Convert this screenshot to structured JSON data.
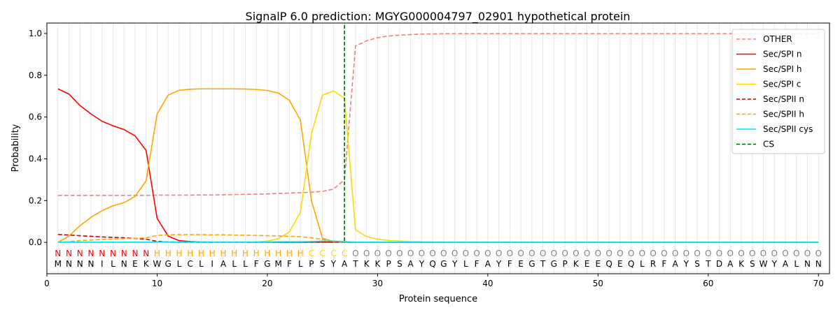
{
  "chart_data": {
    "type": "line",
    "title": "SignalP 6.0 prediction: MGYG000004797_02901 hypothetical protein",
    "xlabel": "Protein sequence",
    "ylabel": "Probability",
    "xlim": [
      0,
      71
    ],
    "ylim": [
      -0.15,
      1.05
    ],
    "x_ticks": [
      0,
      10,
      20,
      30,
      40,
      50,
      60,
      70
    ],
    "y_ticks": [
      0.0,
      0.2,
      0.4,
      0.6,
      0.8,
      1.0
    ],
    "x_tick_labels": [
      "0",
      "10",
      "20",
      "30",
      "40",
      "50",
      "60",
      "70"
    ],
    "y_tick_labels": [
      "0.0",
      "0.2",
      "0.4",
      "0.6",
      "0.8",
      "1.0"
    ],
    "grid": "vertical lines at each residue position",
    "legend_position": "top-right",
    "sequence": [
      "M",
      "N",
      "N",
      "N",
      "I",
      "L",
      "N",
      "E",
      "K",
      "W",
      "G",
      "L",
      "C",
      "L",
      "I",
      "A",
      "L",
      "L",
      "F",
      "G",
      "M",
      "F",
      "L",
      "P",
      "S",
      "Y",
      "A",
      "T",
      "K",
      "K",
      "P",
      "S",
      "A",
      "Y",
      "Q",
      "G",
      "Y",
      "L",
      "F",
      "A",
      "Y",
      "F",
      "E",
      "G",
      "T",
      "G",
      "P",
      "K",
      "E",
      "E",
      "Q",
      "E",
      "Q",
      "L",
      "R",
      "F",
      "A",
      "Y",
      "S",
      "T",
      "D",
      "A",
      "K",
      "S",
      "W",
      "Y",
      "A",
      "L",
      "N",
      "N"
    ],
    "region_labels": [
      "N",
      "N",
      "N",
      "N",
      "N",
      "N",
      "N",
      "N",
      "N",
      "H",
      "H",
      "H",
      "H",
      "H",
      "H",
      "H",
      "H",
      "H",
      "H",
      "H",
      "H",
      "H",
      "H",
      "C",
      "C",
      "C",
      "C",
      "O",
      "O",
      "O",
      "O",
      "O",
      "O",
      "O",
      "O",
      "O",
      "O",
      "O",
      "O",
      "O",
      "O",
      "O",
      "O",
      "O",
      "O",
      "O",
      "O",
      "O",
      "O",
      "O",
      "O",
      "O",
      "O",
      "O",
      "O",
      "O",
      "O",
      "O",
      "O",
      "O",
      "O",
      "O",
      "O",
      "O",
      "O",
      "O",
      "O",
      "O",
      "O",
      "O"
    ],
    "region_colors": {
      "N": "#ff0000",
      "H": "#ffa500",
      "C": "#ffd700",
      "O": "#808080"
    },
    "cleavage_site": 27,
    "series": [
      {
        "name": "OTHER",
        "color": "#f08080",
        "dash": "dashed",
        "values": [
          0.225,
          0.225,
          0.225,
          0.225,
          0.225,
          0.225,
          0.225,
          0.225,
          0.225,
          0.226,
          0.226,
          0.226,
          0.226,
          0.227,
          0.227,
          0.228,
          0.229,
          0.23,
          0.231,
          0.232,
          0.234,
          0.236,
          0.238,
          0.24,
          0.244,
          0.255,
          0.3,
          0.94,
          0.965,
          0.98,
          0.988,
          0.992,
          0.995,
          0.997,
          0.998,
          0.999,
          0.999,
          0.999,
          0.999,
          0.999,
          0.999,
          0.999,
          0.999,
          0.999,
          0.999,
          0.999,
          0.999,
          0.999,
          0.999,
          0.999,
          0.999,
          0.999,
          0.999,
          0.999,
          0.999,
          0.999,
          0.999,
          0.999,
          0.999,
          0.999,
          0.999,
          0.999,
          0.999,
          0.999,
          0.999,
          0.999,
          0.999,
          0.999,
          0.999,
          0.999
        ]
      },
      {
        "name": "Sec/SPI n",
        "color": "#ff0000",
        "dash": "solid",
        "values": [
          0.735,
          0.71,
          0.655,
          0.615,
          0.58,
          0.558,
          0.54,
          0.51,
          0.44,
          0.115,
          0.03,
          0.008,
          0.004,
          0.002,
          0.001,
          0.001,
          0.001,
          0.001,
          0.001,
          0.001,
          0.001,
          0.001,
          0.001,
          0.001,
          0.001,
          0.001,
          0.001,
          0,
          0,
          0,
          0,
          0,
          0,
          0,
          0,
          0,
          0,
          0,
          0,
          0,
          0,
          0,
          0,
          0,
          0,
          0,
          0,
          0,
          0,
          0,
          0,
          0,
          0,
          0,
          0,
          0,
          0,
          0,
          0,
          0,
          0,
          0,
          0,
          0,
          0,
          0,
          0,
          0,
          0,
          0
        ]
      },
      {
        "name": "Sec/SPI h",
        "color": "#ffa500",
        "dash": "solid",
        "values": [
          0.0,
          0.03,
          0.08,
          0.12,
          0.152,
          0.175,
          0.19,
          0.22,
          0.295,
          0.615,
          0.705,
          0.728,
          0.733,
          0.735,
          0.735,
          0.735,
          0.735,
          0.734,
          0.732,
          0.727,
          0.715,
          0.68,
          0.585,
          0.2,
          0.02,
          0.004,
          0.001,
          0,
          0,
          0,
          0,
          0,
          0,
          0,
          0,
          0,
          0,
          0,
          0,
          0,
          0,
          0,
          0,
          0,
          0,
          0,
          0,
          0,
          0,
          0,
          0,
          0,
          0,
          0,
          0,
          0,
          0,
          0,
          0,
          0,
          0,
          0,
          0,
          0,
          0,
          0,
          0,
          0,
          0,
          0
        ]
      },
      {
        "name": "Sec/SPI c",
        "color": "#ffd700",
        "dash": "solid",
        "values": [
          0,
          0,
          0,
          0,
          0,
          0,
          0,
          0,
          0,
          0,
          0,
          0,
          0,
          0,
          0,
          0,
          0,
          0,
          0.002,
          0.006,
          0.018,
          0.05,
          0.145,
          0.52,
          0.705,
          0.725,
          0.69,
          0.06,
          0.028,
          0.015,
          0.009,
          0.006,
          0.004,
          0.003,
          0.002,
          0.001,
          0.001,
          0.001,
          0.001,
          0.001,
          0.001,
          0.001,
          0.001,
          0.001,
          0.001,
          0.001,
          0.001,
          0.001,
          0.001,
          0.001,
          0.001,
          0.001,
          0.001,
          0.001,
          0.001,
          0.001,
          0.001,
          0.001,
          0.001,
          0.001,
          0.001,
          0.001,
          0.001,
          0.001,
          0.001,
          0.001,
          0.001,
          0.001,
          0.001,
          0.001
        ]
      },
      {
        "name": "Sec/SPII n",
        "color": "#cc0000",
        "dash": "dashed",
        "values": [
          0.038,
          0.035,
          0.032,
          0.029,
          0.026,
          0.024,
          0.022,
          0.019,
          0.015,
          0.005,
          0.002,
          0.001,
          0.001,
          0.001,
          0.001,
          0.001,
          0.001,
          0.001,
          0.001,
          0.001,
          0.001,
          0.001,
          0.001,
          0.001,
          0.001,
          0.001,
          0.001,
          0,
          0,
          0,
          0,
          0,
          0,
          0,
          0,
          0,
          0,
          0,
          0,
          0,
          0,
          0,
          0,
          0,
          0,
          0,
          0,
          0,
          0,
          0,
          0,
          0,
          0,
          0,
          0,
          0,
          0,
          0,
          0,
          0,
          0,
          0,
          0,
          0,
          0,
          0,
          0,
          0,
          0,
          0
        ]
      },
      {
        "name": "Sec/SPII h",
        "color": "#ffa500",
        "dash": "dashed",
        "values": [
          0.0,
          0.004,
          0.008,
          0.011,
          0.014,
          0.016,
          0.018,
          0.019,
          0.022,
          0.033,
          0.036,
          0.037,
          0.037,
          0.037,
          0.036,
          0.036,
          0.035,
          0.034,
          0.033,
          0.032,
          0.031,
          0.029,
          0.027,
          0.022,
          0.014,
          0.006,
          0.002,
          0,
          0,
          0,
          0,
          0,
          0,
          0,
          0,
          0,
          0,
          0,
          0,
          0,
          0,
          0,
          0,
          0,
          0,
          0,
          0,
          0,
          0,
          0,
          0,
          0,
          0,
          0,
          0,
          0,
          0,
          0,
          0,
          0,
          0,
          0,
          0,
          0,
          0,
          0,
          0,
          0,
          0,
          0
        ]
      },
      {
        "name": "Sec/SPII cys",
        "color": "#00e5ee",
        "dash": "solid",
        "values": [
          0.001,
          0.001,
          0.001,
          0.001,
          0.001,
          0.001,
          0.001,
          0.001,
          0.001,
          0.002,
          0.002,
          0.002,
          0.002,
          0.002,
          0.002,
          0.002,
          0.002,
          0.002,
          0.002,
          0.002,
          0.003,
          0.003,
          0.003,
          0.004,
          0.006,
          0.006,
          0.004,
          0.001,
          0.001,
          0.001,
          0.001,
          0.001,
          0.001,
          0.001,
          0.001,
          0.001,
          0.001,
          0.001,
          0.001,
          0.001,
          0.001,
          0.001,
          0.001,
          0.001,
          0.001,
          0.001,
          0.001,
          0.001,
          0.001,
          0.001,
          0.001,
          0.001,
          0.001,
          0.001,
          0.001,
          0.001,
          0.001,
          0.001,
          0.001,
          0.001,
          0.001,
          0.001,
          0.001,
          0.001,
          0.001,
          0.001,
          0.001,
          0.001,
          0.001,
          0.001
        ]
      }
    ],
    "cs_legend": {
      "name": "CS",
      "color": "#006400",
      "dash": "dashed"
    }
  }
}
